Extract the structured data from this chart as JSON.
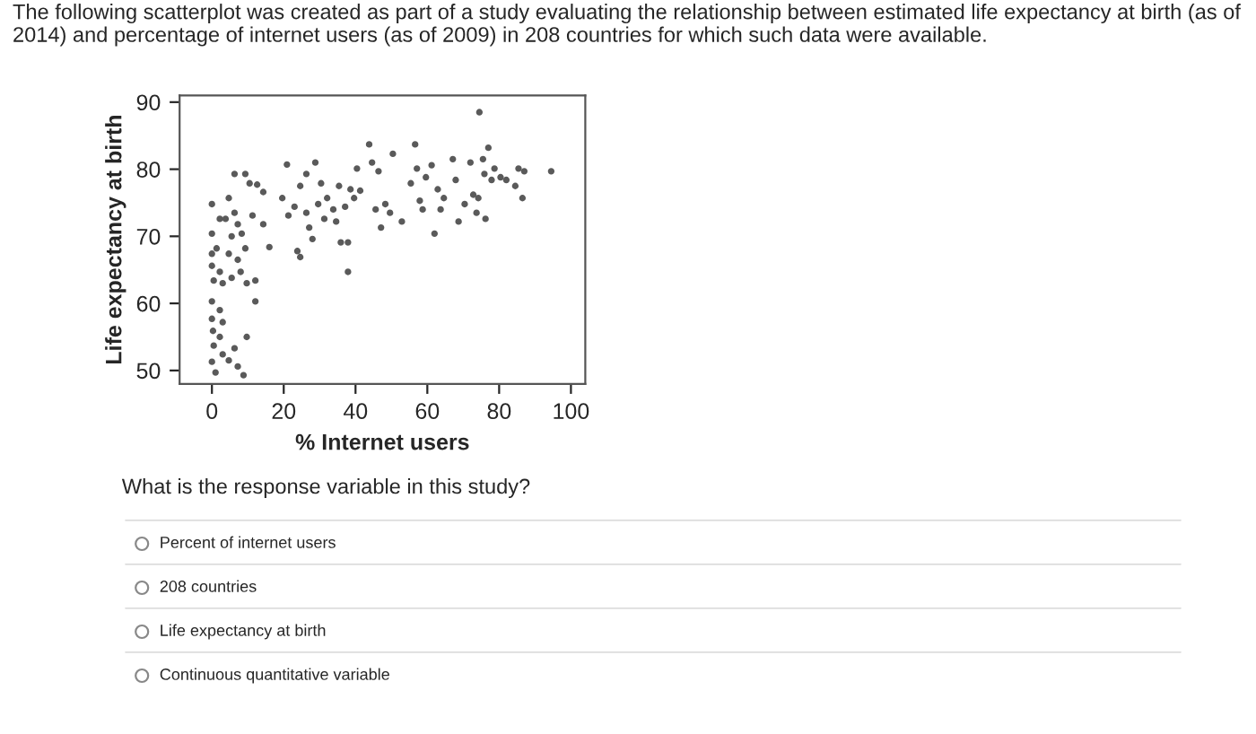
{
  "chart_data": {
    "type": "scatter",
    "title": "The following scatterplot was created as part of a study evaluating the relationship between estimated life expectancy at birth (as of 2014) and percentage of internet users (as of 2009) in 208 countries for which such data were available.",
    "xlabel": "% Internet users",
    "ylabel": "Life expectancy at birth",
    "xlim": [
      -9,
      104
    ],
    "ylim": [
      48,
      91
    ],
    "xticks": [
      0,
      20,
      40,
      60,
      80,
      100
    ],
    "yticks": [
      50,
      60,
      70,
      80,
      90
    ],
    "grid": false,
    "marker": "circle",
    "annotations": [
      "What is the response variable in this study?",
      "Percent of internet users",
      "208 countries",
      "Life expectancy at birth",
      "Continuous quantitative variable"
    ],
    "series": [
      {
        "color": "#5a5a5a",
        "x": [
          0,
          0,
          0,
          0.5,
          0,
          0,
          0.3,
          0.5,
          0,
          1,
          0,
          2.2,
          1.3,
          2.2,
          3,
          2.2,
          3,
          2.2,
          3,
          4.7,
          3.8,
          5.5,
          4.7,
          5.5,
          6.3,
          4.7,
          6.3,
          7.2,
          7.2,
          8,
          6.3,
          7.2,
          8.8,
          8.3,
          9.3,
          9.7,
          9.7,
          9.3,
          10.5,
          11.3,
          12.1,
          12.1,
          12.6,
          14.3,
          14.3,
          16,
          19.6,
          20.9,
          21.3,
          23,
          23.8,
          24.6,
          24.6,
          26.3,
          26.3,
          27.1,
          28,
          28.8,
          29.6,
          30.4,
          31.3,
          32.1,
          33.8,
          34.6,
          35.4,
          35.9,
          37.1,
          37.9,
          37.9,
          38.6,
          39.6,
          40.4,
          41.3,
          43.8,
          44.6,
          45.6,
          46.4,
          47.1,
          48.3,
          49.6,
          50.4,
          52.9,
          55.4,
          56.6,
          57.1,
          57.9,
          58.7,
          59.6,
          61.2,
          62,
          62.9,
          63.7,
          64.6,
          67.1,
          67.9,
          68.7,
          70.4,
          72,
          72.8,
          73.7,
          74.5,
          74.2,
          75.5,
          76.2,
          75.9,
          77,
          77.9,
          78.7,
          80.4,
          82,
          84.5,
          85.4,
          86.5,
          87,
          94.5
        ],
        "values": [
          70.4,
          67.4,
          65.6,
          63.4,
          60.3,
          57.7,
          55.9,
          53.7,
          51.3,
          49.7,
          74.8,
          72.6,
          68.2,
          64.7,
          63,
          59,
          57.2,
          55,
          52.4,
          51.5,
          72.6,
          70,
          67.4,
          63.8,
          73.5,
          75.7,
          79.3,
          71.8,
          66.5,
          64.7,
          53.3,
          50.6,
          49.3,
          70.4,
          68.2,
          63,
          55,
          79.3,
          77.9,
          73.1,
          63.4,
          60.3,
          77.7,
          71.8,
          76.6,
          68.4,
          75.7,
          80.7,
          73.1,
          74.4,
          67.8,
          66.9,
          77.5,
          79.3,
          73.5,
          71.3,
          69.6,
          81,
          74.8,
          77.9,
          72.6,
          75.7,
          74,
          72.2,
          77.5,
          69.1,
          74.4,
          64.7,
          69.1,
          77,
          75.7,
          80.1,
          76.8,
          83.7,
          81,
          74,
          79.7,
          71.3,
          74.8,
          73.5,
          82.3,
          72.2,
          77.9,
          83.7,
          80.1,
          75.3,
          74,
          78.8,
          80.6,
          70.4,
          77,
          74,
          75.7,
          81.5,
          78.4,
          72.2,
          74.8,
          81,
          76.2,
          73.5,
          88.5,
          75.7,
          81.5,
          72.6,
          79.3,
          83.2,
          78.4,
          80.1,
          78.8,
          78.4,
          77.5,
          80.1,
          75.7,
          79.7,
          79.7
        ]
      }
    ]
  }
}
